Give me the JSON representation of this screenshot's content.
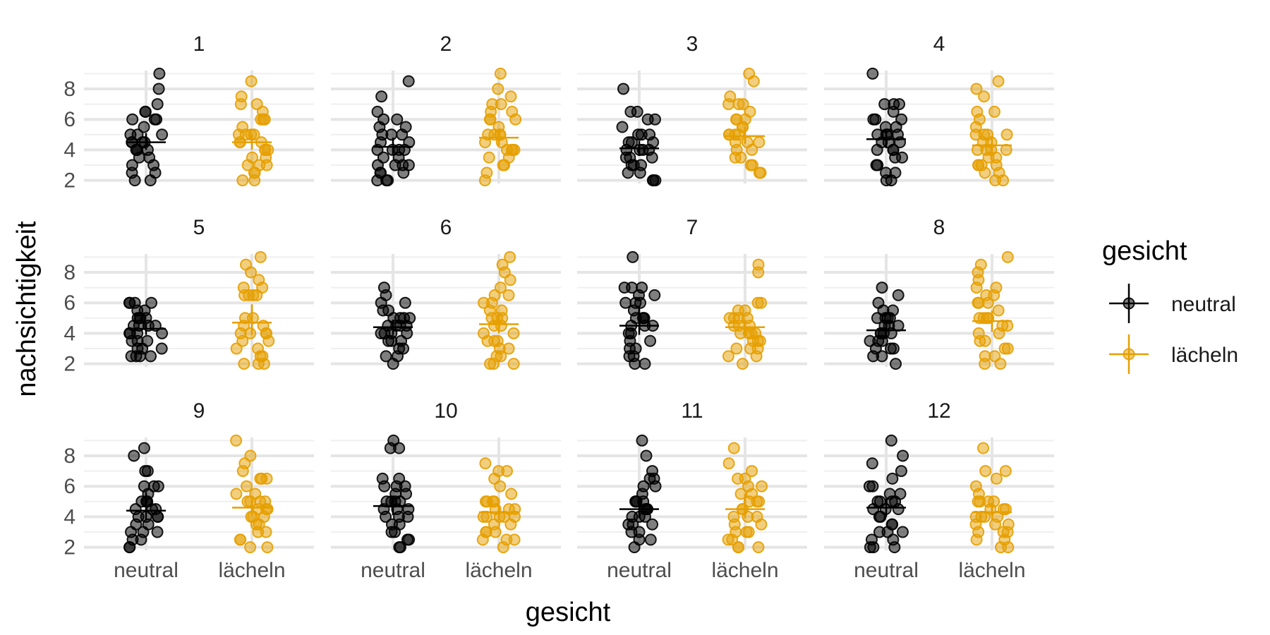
{
  "chart_data": {
    "type": "scatter",
    "xlabel": "gesicht",
    "ylabel": "nachsichtigkeit",
    "categories": [
      "neutral",
      "lächeln"
    ],
    "y_ticks": [
      "2",
      "4",
      "6",
      "8"
    ],
    "ylim": [
      1.8,
      9.2
    ],
    "grid": true,
    "legend": {
      "title": "gesicht",
      "position": "right",
      "entries": [
        {
          "label": "neutral",
          "color": "#000000"
        },
        {
          "label": "lächeln",
          "color": "#E69F00"
        }
      ]
    },
    "colors": {
      "neutral": "#000000",
      "lächeln": "#E69F00"
    },
    "panels": [
      {
        "label": "1",
        "neutral": {
          "mean": 4.5,
          "ci": [
            4.0,
            5.1
          ],
          "points": [
            9,
            8,
            7,
            6.5,
            6.5,
            6,
            6,
            5.5,
            5,
            5,
            4.5,
            4.5,
            4.5,
            4,
            4,
            4,
            4,
            3.5,
            3.5,
            3,
            3,
            2.5,
            2.5,
            2,
            2,
            4.5,
            5,
            6
          ]
        },
        "lächeln": {
          "mean": 4.5,
          "ci": [
            4.0,
            5.0
          ],
          "points": [
            8.5,
            7.5,
            7,
            7,
            6.5,
            6,
            6,
            5.5,
            5,
            5,
            5,
            4.5,
            4.5,
            4.5,
            4,
            4,
            3.5,
            3.5,
            3,
            3,
            3,
            2.5,
            2.5,
            2,
            2,
            6,
            4,
            5
          ]
        }
      },
      {
        "label": "2",
        "neutral": {
          "mean": 4.2,
          "ci": [
            3.7,
            4.8
          ],
          "points": [
            8.5,
            7.5,
            6.5,
            6,
            6,
            5.5,
            5,
            5,
            5,
            4.5,
            4.5,
            4,
            4,
            4,
            3.5,
            3.5,
            3,
            3,
            3,
            2.5,
            2.5,
            2.5,
            2,
            2,
            2,
            5.5,
            4,
            3
          ]
        },
        "lächeln": {
          "mean": 4.8,
          "ci": [
            4.3,
            5.4
          ],
          "points": [
            9,
            8,
            7.5,
            7,
            7,
            6.5,
            6.5,
            6,
            6,
            5.5,
            5,
            5,
            5,
            4.5,
            4.5,
            4,
            4,
            4,
            3.5,
            3.5,
            3,
            3,
            2.5,
            2,
            6,
            5,
            4
          ]
        }
      },
      {
        "label": "3",
        "neutral": {
          "mean": 4.1,
          "ci": [
            3.6,
            4.6
          ],
          "points": [
            8,
            6.5,
            6.5,
            6,
            6,
            5.5,
            5,
            5,
            4.5,
            4.5,
            4.5,
            4,
            4,
            4,
            4,
            3.5,
            3.5,
            3,
            3,
            3,
            2.5,
            2.5,
            2,
            2,
            2,
            5,
            3.5
          ]
        },
        "lächeln": {
          "mean": 4.9,
          "ci": [
            4.4,
            5.5
          ],
          "points": [
            9,
            8.5,
            7.5,
            7,
            7,
            7,
            6.5,
            6,
            6,
            5.5,
            5.5,
            5,
            5,
            5,
            4.5,
            4.5,
            4.5,
            4,
            4,
            3.5,
            3.5,
            3,
            3,
            2.5,
            2.5,
            6,
            5
          ]
        }
      },
      {
        "label": "4",
        "neutral": {
          "mean": 4.7,
          "ci": [
            4.1,
            5.3
          ],
          "points": [
            9,
            7,
            7,
            7,
            6.5,
            6,
            6,
            5.5,
            5.5,
            5,
            5,
            5,
            4.5,
            4.5,
            4.5,
            4,
            4,
            4,
            3.5,
            3.5,
            3,
            3,
            2.5,
            2.5,
            2,
            2,
            6,
            5
          ]
        },
        "lächeln": {
          "mean": 4.3,
          "ci": [
            3.8,
            4.9
          ],
          "points": [
            8.5,
            8,
            7.5,
            6.5,
            6.5,
            6,
            5.5,
            5,
            5,
            5,
            4.5,
            4.5,
            4,
            4,
            4,
            4,
            3.5,
            3.5,
            3,
            3,
            3,
            2.5,
            2.5,
            2,
            2,
            5,
            3
          ]
        }
      },
      {
        "label": "5",
        "neutral": {
          "mean": 4.3,
          "ci": [
            3.9,
            4.7
          ],
          "points": [
            6,
            6,
            6,
            6,
            5.5,
            5.5,
            5,
            5,
            5,
            4.5,
            4.5,
            4.5,
            4.5,
            4,
            4,
            4,
            3.5,
            3.5,
            3.5,
            3,
            3,
            3,
            2.5,
            2.5,
            2.5,
            2.5,
            5,
            4
          ]
        },
        "lächeln": {
          "mean": 4.7,
          "ci": [
            3.9,
            5.9
          ],
          "points": [
            9,
            8.5,
            8,
            7.5,
            7,
            7,
            6.5,
            6.5,
            6.5,
            5,
            5,
            4.5,
            4.5,
            4,
            4,
            4,
            3.5,
            3.5,
            3,
            3,
            2.5,
            2.5,
            2,
            2,
            2,
            6.5,
            4
          ]
        }
      },
      {
        "label": "6",
        "neutral": {
          "mean": 4.4,
          "ci": [
            3.9,
            4.9
          ],
          "points": [
            7,
            6.5,
            6,
            6,
            5.5,
            5.5,
            5,
            5,
            5,
            4.5,
            4.5,
            4.5,
            4.5,
            4,
            4,
            4,
            3.5,
            3.5,
            3.5,
            3,
            3,
            2.5,
            2.5,
            2,
            5,
            4
          ]
        },
        "lächeln": {
          "mean": 4.6,
          "ci": [
            4.0,
            5.3
          ],
          "points": [
            9,
            8.5,
            8,
            7.5,
            7,
            6.5,
            6.5,
            6,
            6,
            5.5,
            5.5,
            5,
            5,
            4.5,
            4.5,
            4,
            4,
            3.5,
            3.5,
            3.5,
            3,
            3,
            2.5,
            2.5,
            2,
            2,
            2,
            5
          ]
        }
      },
      {
        "label": "7",
        "neutral": {
          "mean": 4.5,
          "ci": [
            3.9,
            5.8
          ],
          "points": [
            9,
            7,
            7,
            7,
            6.5,
            6.5,
            6,
            6,
            5.5,
            5,
            5,
            5,
            4.5,
            4.5,
            4.5,
            4,
            4,
            3.5,
            3.5,
            3,
            3,
            2.5,
            2.5,
            2,
            2,
            5,
            6
          ]
        },
        "lächeln": {
          "mean": 4.4,
          "ci": [
            3.9,
            4.9
          ],
          "points": [
            8.5,
            8,
            6,
            6,
            5.5,
            5.5,
            5,
            5,
            5,
            4.5,
            4.5,
            4.5,
            4,
            4,
            4,
            3.5,
            3.5,
            3.5,
            3,
            3,
            3,
            2.5,
            2.5,
            2,
            4,
            5
          ]
        }
      },
      {
        "label": "8",
        "neutral": {
          "mean": 4.2,
          "ci": [
            3.7,
            4.7
          ],
          "points": [
            7,
            6.5,
            6,
            5.5,
            5.5,
            5,
            5,
            5,
            4.5,
            4.5,
            4.5,
            4,
            4,
            4,
            3.5,
            3.5,
            3.5,
            3,
            3,
            3,
            2.5,
            2.5,
            2,
            5,
            4
          ]
        },
        "lächeln": {
          "mean": 4.8,
          "ci": [
            4.1,
            5.5
          ],
          "points": [
            9,
            8.5,
            8,
            7.5,
            7,
            7,
            6.5,
            6.5,
            6,
            6,
            5.5,
            5,
            5,
            5,
            4.5,
            4.5,
            4,
            4,
            3.5,
            3.5,
            3,
            3,
            2.5,
            2.5,
            2,
            2,
            6,
            5
          ]
        }
      },
      {
        "label": "9",
        "neutral": {
          "mean": 4.4,
          "ci": [
            3.8,
            5.6
          ],
          "points": [
            8.5,
            8,
            7,
            7,
            6,
            6,
            6,
            5.5,
            5,
            5,
            5,
            4.5,
            4.5,
            4.5,
            4,
            4,
            4,
            3.5,
            3.5,
            3,
            3,
            3,
            2.5,
            2.5,
            2,
            2,
            5,
            4
          ]
        },
        "lächeln": {
          "mean": 4.6,
          "ci": [
            4.1,
            5.1
          ],
          "points": [
            9,
            8,
            7.5,
            7,
            6.5,
            6.5,
            6.5,
            6,
            5.5,
            5.5,
            5,
            5,
            5,
            4.5,
            4.5,
            4.5,
            4,
            4,
            3.5,
            3.5,
            3,
            3,
            2.5,
            2.5,
            2,
            2,
            5,
            4
          ]
        }
      },
      {
        "label": "10",
        "neutral": {
          "mean": 4.7,
          "ci": [
            4.1,
            5.3
          ],
          "points": [
            9,
            8.5,
            8.5,
            6.5,
            6.5,
            6,
            6,
            5.5,
            5.5,
            5,
            5,
            5,
            4.5,
            4.5,
            4.5,
            4,
            4,
            4,
            3.5,
            3.5,
            3,
            3,
            2.5,
            2.5,
            2,
            2,
            6,
            5
          ]
        },
        "lächeln": {
          "mean": 4.3,
          "ci": [
            3.8,
            4.8
          ],
          "points": [
            7.5,
            7,
            7,
            6.5,
            6,
            5.5,
            5,
            5,
            5,
            4.5,
            4.5,
            4.5,
            4,
            4,
            4,
            4,
            3.5,
            3.5,
            3,
            3,
            3,
            2.5,
            2.5,
            2.5,
            2,
            5,
            4
          ]
        }
      },
      {
        "label": "11",
        "neutral": {
          "mean": 4.5,
          "ci": [
            3.9,
            5.1
          ],
          "points": [
            9,
            8,
            7,
            6.5,
            6.5,
            6,
            6,
            5.5,
            5,
            5,
            5,
            4.5,
            4.5,
            4.5,
            4.5,
            4,
            4,
            3.5,
            3.5,
            3.5,
            3,
            3,
            2.5,
            2.5,
            2,
            5,
            4
          ]
        },
        "lächeln": {
          "mean": 4.5,
          "ci": [
            3.9,
            5.5
          ],
          "points": [
            8.5,
            7.5,
            7,
            6.5,
            6.5,
            6,
            5.5,
            5.5,
            5,
            5,
            5,
            4.5,
            4.5,
            4,
            4,
            3.5,
            3.5,
            3,
            3,
            3,
            2.5,
            2.5,
            2,
            2,
            2,
            4,
            6
          ]
        }
      },
      {
        "label": "12",
        "neutral": {
          "mean": 4.6,
          "ci": [
            4.0,
            5.2
          ],
          "points": [
            9,
            8,
            7.5,
            7,
            6.5,
            6,
            6,
            5.5,
            5.5,
            5,
            5,
            5,
            4.5,
            4.5,
            4.5,
            4,
            4,
            3.5,
            3.5,
            3,
            3,
            3,
            2.5,
            2.5,
            2,
            2,
            2,
            5
          ]
        },
        "lächeln": {
          "mean": 4.3,
          "ci": [
            3.8,
            4.9
          ],
          "points": [
            8.5,
            7,
            7,
            6.5,
            6,
            5.5,
            5,
            5,
            5,
            4.5,
            4.5,
            4.5,
            4,
            4,
            4,
            3.5,
            3.5,
            3.5,
            3,
            3,
            3,
            2.5,
            2.5,
            2,
            2,
            5,
            4
          ]
        }
      }
    ]
  }
}
